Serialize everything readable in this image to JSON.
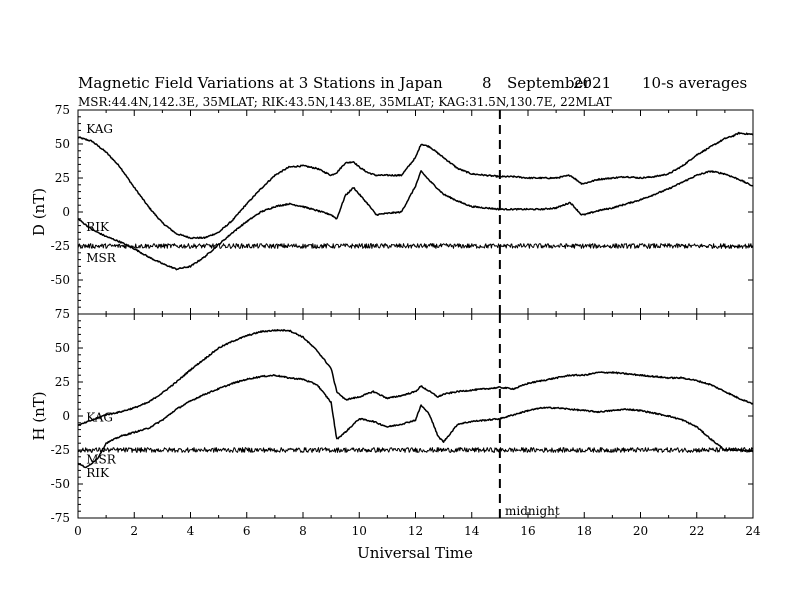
{
  "title": "Magnetic Field Variations at 3 Stations in Japan",
  "date_day": "8",
  "date_month": "September",
  "date_year": "2021",
  "averaging": "10-s averages",
  "subtitle": "MSR:44.4N,142.3E, 35MLAT;  RIK:43.5N,143.8E, 35MLAT;  KAG:31.5N,130.7E, 22MLAT",
  "xlabel": "Universal Time",
  "midnight_label": "midnight",
  "chart_data": [
    {
      "type": "line",
      "panel": "D",
      "ylabel": "D (nT)",
      "xlim": [
        0,
        24
      ],
      "ylim": [
        -75,
        75
      ],
      "xticks": [
        0,
        2,
        4,
        6,
        8,
        10,
        12,
        14,
        16,
        18,
        20,
        22,
        24
      ],
      "yticks": [
        75,
        50,
        25,
        0,
        -25,
        -50,
        -75
      ],
      "midnight_ut": 15,
      "series": [
        {
          "name": "KAG",
          "label_at": [
            0.15,
            61
          ],
          "x": [
            0,
            0.5,
            1,
            1.5,
            2,
            2.5,
            3,
            3.5,
            4,
            4.5,
            5,
            5.5,
            6,
            6.5,
            7,
            7.5,
            8,
            8.5,
            9,
            9.2,
            9.5,
            9.8,
            10,
            10.3,
            10.6,
            11,
            11.5,
            12,
            12.2,
            12.5,
            13,
            13.5,
            14,
            14.5,
            15,
            15.5,
            16,
            16.5,
            17,
            17.5,
            17.9,
            18,
            18.5,
            19,
            19.5,
            20,
            20.5,
            21,
            21.5,
            22,
            22.5,
            23,
            23.3,
            23.5,
            24
          ],
          "y": [
            55,
            52,
            44,
            33,
            18,
            4,
            -8,
            -16,
            -19,
            -19,
            -15,
            -6,
            6,
            17,
            27,
            33,
            34,
            32,
            27,
            29,
            36,
            37,
            33,
            29,
            27,
            27,
            27,
            40,
            50,
            48,
            40,
            32,
            28,
            27,
            26,
            26,
            25,
            25,
            25,
            27,
            21,
            21,
            24,
            25,
            26,
            25,
            26,
            28,
            34,
            42,
            48,
            54,
            56,
            58,
            57
          ]
        },
        {
          "name": "RIK",
          "label_at": [
            0.15,
            -11
          ],
          "x": [
            0,
            0.5,
            1,
            1.5,
            2,
            2.5,
            3,
            3.5,
            4,
            4.5,
            5,
            5.5,
            6,
            6.5,
            7,
            7.5,
            8,
            8.5,
            9,
            9.2,
            9.5,
            9.8,
            10,
            10.3,
            10.6,
            11,
            11.5,
            12,
            12.2,
            12.5,
            13,
            13.5,
            14,
            14.5,
            15,
            15.5,
            16,
            16.5,
            17,
            17.5,
            17.9,
            18,
            18.5,
            19,
            19.5,
            20,
            20.5,
            21,
            21.5,
            22,
            22.5,
            23,
            23.5,
            24
          ],
          "y": [
            -5,
            -13,
            -18,
            -22,
            -27,
            -33,
            -38,
            -42,
            -40,
            -33,
            -24,
            -15,
            -7,
            0,
            4,
            6,
            4,
            1,
            -2,
            -5,
            12,
            18,
            13,
            6,
            -2,
            -1,
            0,
            19,
            30,
            23,
            13,
            8,
            4,
            3,
            2,
            2,
            2,
            2,
            3,
            7,
            -2,
            -2,
            1,
            3,
            6,
            9,
            13,
            17,
            22,
            27,
            30,
            28,
            24,
            19
          ]
        },
        {
          "name": "MSR",
          "label_at": [
            0.15,
            -34
          ],
          "noise": 1.8,
          "x": [
            0,
            24
          ],
          "y": [
            -25,
            -25
          ]
        }
      ]
    },
    {
      "type": "line",
      "panel": "H",
      "ylabel": "H (nT)",
      "xlim": [
        0,
        24
      ],
      "ylim": [
        -75,
        75
      ],
      "xticks": [
        0,
        2,
        4,
        6,
        8,
        10,
        12,
        14,
        16,
        18,
        20,
        22,
        24
      ],
      "yticks": [
        75,
        50,
        25,
        0,
        -25,
        -50,
        -75
      ],
      "midnight_ut": 15,
      "series": [
        {
          "name": "KAG",
          "label_at": [
            0.15,
            -1
          ],
          "x": [
            0,
            0.5,
            1,
            1.5,
            2,
            2.5,
            3,
            3.5,
            4,
            4.5,
            5,
            5.5,
            6,
            6.5,
            7,
            7.5,
            8,
            8.5,
            9,
            9.2,
            9.5,
            10,
            10.5,
            11,
            11.5,
            12,
            12.2,
            12.5,
            12.8,
            13,
            13.5,
            14,
            14.5,
            15,
            15.5,
            16,
            16.5,
            17,
            17.5,
            18,
            18.5,
            19,
            19.5,
            20,
            20.5,
            21,
            21.5,
            22,
            22.5,
            23,
            23.5,
            24
          ],
          "y": [
            -7,
            -3,
            1,
            3,
            6,
            10,
            17,
            25,
            34,
            42,
            50,
            55,
            59,
            62,
            63,
            63,
            58,
            48,
            35,
            18,
            12,
            14,
            18,
            13,
            15,
            18,
            22,
            18,
            14,
            16,
            18,
            19,
            20,
            21,
            20,
            24,
            26,
            28,
            30,
            30,
            32,
            32,
            31,
            30,
            29,
            28,
            28,
            26,
            23,
            18,
            13,
            9
          ]
        },
        {
          "name": "RIK",
          "label_at": [
            0.15,
            -42
          ],
          "x": [
            0,
            0.3,
            0.7,
            1,
            1.5,
            2,
            2.5,
            3,
            3.5,
            4,
            4.5,
            5,
            5.5,
            6,
            6.5,
            7,
            7.5,
            8,
            8.5,
            9,
            9.2,
            9.5,
            10,
            10.5,
            11,
            11.5,
            12,
            12.2,
            12.5,
            12.8,
            13,
            13.5,
            14,
            14.5,
            15,
            15.5,
            16,
            16.5,
            17,
            17.5,
            18,
            18.5,
            19,
            19.5,
            20,
            20.5,
            21,
            21.5,
            22,
            22.5,
            23,
            23.5,
            24
          ],
          "y": [
            -35,
            -38,
            -31,
            -20,
            -15,
            -12,
            -9,
            -3,
            5,
            11,
            16,
            20,
            24,
            27,
            29,
            30,
            28,
            27,
            23,
            10,
            -17,
            -12,
            -2,
            -4,
            -8,
            -6,
            -3,
            8,
            1,
            -15,
            -19,
            -6,
            -4,
            -3,
            -2,
            1,
            4,
            6,
            6,
            5,
            4,
            3,
            4,
            5,
            4,
            2,
            0,
            -3,
            -8,
            -17,
            -25,
            -25,
            -26
          ]
        },
        {
          "name": "MSR",
          "label_at": [
            0.15,
            -32
          ],
          "noise": 1.8,
          "x": [
            0,
            24
          ],
          "y": [
            -25,
            -25
          ]
        }
      ]
    }
  ]
}
